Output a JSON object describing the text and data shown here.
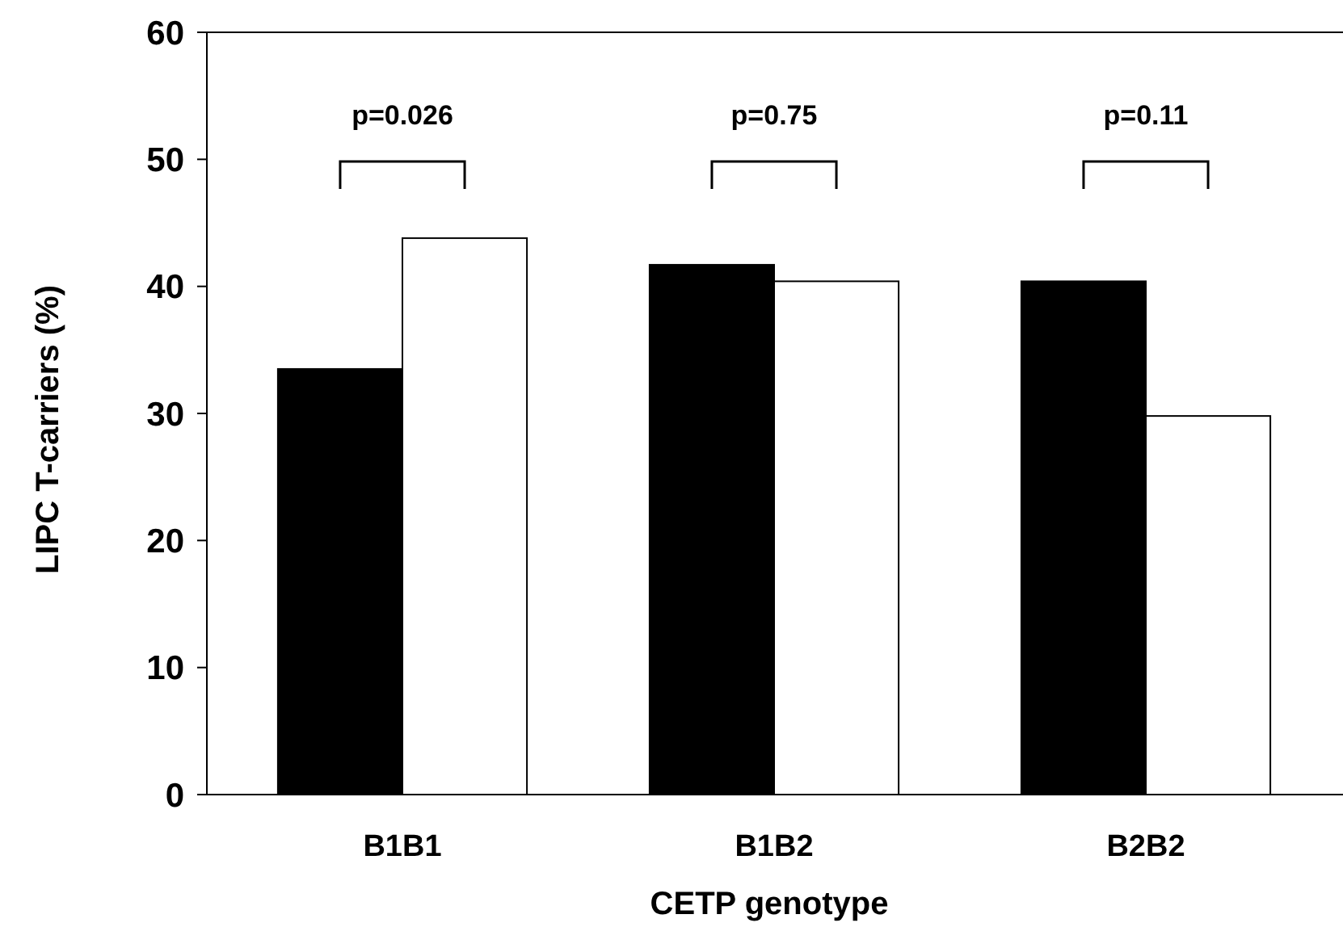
{
  "chart_data": {
    "type": "bar",
    "xlabel": "CETP genotype",
    "ylabel": "LIPC T-carriers (%)",
    "categories": [
      "B1B1",
      "B1B2",
      "B2B2"
    ],
    "series": [
      {
        "color": "#000000",
        "values": [
          33.5,
          41.7,
          40.4
        ]
      },
      {
        "color": "#ffffff",
        "values": [
          43.8,
          40.4,
          29.8
        ]
      }
    ],
    "ylim": [
      0,
      60
    ],
    "yticks": [
      0,
      10,
      20,
      30,
      40,
      50,
      60
    ],
    "grid": false,
    "annotations": [
      "p=0.026",
      "p=0.75",
      "p=0.11"
    ]
  }
}
